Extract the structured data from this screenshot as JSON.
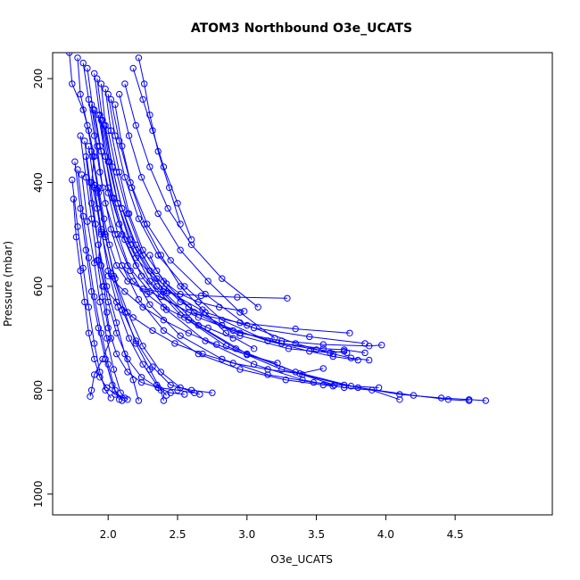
{
  "chart_data": {
    "type": "scatter",
    "title": "ATOM3 Northbound O3e_UCATS",
    "xlabel": "O3e_UCATS",
    "ylabel": "Pressure (mbar)",
    "xlim": [
      1.6,
      5.2
    ],
    "ylim": [
      1040,
      150
    ],
    "y_inverted": true,
    "x_ticks": [
      "2.0",
      "2.5",
      "3.0",
      "3.5",
      "4.0",
      "4.5"
    ],
    "y_ticks": [
      "200",
      "400",
      "600",
      "800",
      "1000"
    ],
    "grid": false,
    "legend": "none",
    "series_color": "#0000ff",
    "marker": "open circle",
    "connected": true,
    "series": [
      {
        "x": [
          1.72,
          1.74,
          1.82,
          1.86,
          1.9,
          1.88,
          1.92,
          1.95,
          1.93,
          1.97,
          1.99,
          2.02,
          1.96,
          1.9,
          1.88,
          1.87
        ],
        "y": [
          150,
          210,
          260,
          300,
          350,
          400,
          450,
          500,
          550,
          600,
          650,
          700,
          740,
          770,
          800,
          812
        ]
      },
      {
        "x": [
          1.78,
          1.8,
          1.85,
          1.89,
          1.93,
          1.97,
          2.01,
          2.06,
          2.14,
          2.25,
          2.42,
          2.67,
          2.93,
          3.29
        ],
        "y": [
          160,
          230,
          290,
          350,
          410,
          470,
          520,
          560,
          590,
          605,
          613,
          618,
          621,
          623
        ]
      },
      {
        "x": [
          1.82,
          1.86,
          1.9,
          1.94,
          1.98,
          2.05,
          2.14,
          2.3,
          2.58,
          2.95,
          3.35,
          3.74
        ],
        "y": [
          170,
          240,
          310,
          380,
          440,
          500,
          560,
          610,
          650,
          670,
          682,
          690
        ]
      },
      {
        "x": [
          1.85,
          1.89,
          1.94,
          2.0,
          2.08,
          2.2,
          2.4,
          2.7,
          3.05,
          3.45,
          3.85
        ],
        "y": [
          180,
          260,
          330,
          410,
          480,
          545,
          605,
          650,
          680,
          697,
          710
        ]
      },
      {
        "x": [
          1.9,
          1.94,
          1.98,
          2.03,
          2.1,
          2.2,
          2.38,
          2.65,
          2.95,
          3.25,
          3.55,
          3.88,
          3.97
        ],
        "y": [
          190,
          270,
          350,
          430,
          500,
          560,
          620,
          660,
          690,
          705,
          712,
          715,
          713
        ]
      },
      {
        "x": [
          1.92,
          1.96,
          2.01,
          2.07,
          2.16,
          2.3,
          2.52,
          2.82,
          3.15,
          3.5,
          3.72
        ],
        "y": [
          200,
          280,
          360,
          440,
          510,
          570,
          630,
          675,
          705,
          722,
          728
        ]
      },
      {
        "x": [
          1.95,
          1.98,
          2.03,
          2.1,
          2.2,
          2.35,
          2.58,
          2.9,
          3.25,
          3.55,
          3.7,
          3.85
        ],
        "y": [
          210,
          290,
          370,
          450,
          520,
          585,
          640,
          685,
          710,
          720,
          722,
          728
        ]
      },
      {
        "x": [
          1.98,
          2.02,
          2.08,
          2.15,
          2.25,
          2.4,
          2.62,
          2.95,
          3.3,
          3.6,
          3.7
        ],
        "y": [
          220,
          300,
          380,
          460,
          530,
          590,
          650,
          695,
          720,
          728,
          725
        ]
      },
      {
        "x": [
          2.0,
          2.05,
          2.12,
          2.22,
          2.36,
          2.55,
          2.82,
          3.15,
          3.45,
          3.62,
          3.8
        ],
        "y": [
          230,
          310,
          390,
          470,
          540,
          600,
          665,
          705,
          725,
          735,
          742
        ]
      },
      {
        "x": [
          2.02,
          2.08,
          2.16,
          2.28,
          2.45,
          2.7,
          3.0,
          3.35,
          3.62,
          3.75,
          3.88
        ],
        "y": [
          240,
          320,
          400,
          480,
          550,
          615,
          675,
          710,
          730,
          738,
          742
        ]
      },
      {
        "x": [
          1.88,
          1.92,
          1.96,
          2.02,
          2.1,
          2.22,
          2.4,
          2.65,
          2.95,
          3.28,
          3.55,
          3.62
        ],
        "y": [
          250,
          330,
          410,
          490,
          560,
          625,
          685,
          730,
          760,
          780,
          790,
          792
        ]
      },
      {
        "x": [
          1.9,
          1.95,
          2.0,
          2.07,
          2.16,
          2.3,
          2.52,
          2.82,
          3.15,
          3.48,
          3.75,
          3.95
        ],
        "y": [
          260,
          340,
          420,
          500,
          570,
          635,
          695,
          740,
          770,
          785,
          792,
          795
        ]
      },
      {
        "x": [
          1.93,
          1.98,
          2.04,
          2.12,
          2.24,
          2.42,
          2.7,
          3.05,
          3.4,
          3.7,
          3.9,
          4.1
        ],
        "y": [
          270,
          350,
          430,
          510,
          580,
          645,
          705,
          750,
          780,
          795,
          800,
          818
        ]
      },
      {
        "x": [
          1.95,
          2.0,
          2.07,
          2.16,
          2.3,
          2.52,
          2.85,
          3.25,
          3.7,
          4.1,
          4.4,
          4.6,
          4.72
        ],
        "y": [
          280,
          360,
          440,
          520,
          590,
          655,
          715,
          760,
          790,
          808,
          815,
          818,
          820
        ]
      },
      {
        "x": [
          1.97,
          2.03,
          2.1,
          2.2,
          2.35,
          2.58,
          2.92,
          3.35,
          3.8,
          4.2,
          4.45,
          4.6
        ],
        "y": [
          290,
          370,
          450,
          530,
          600,
          665,
          720,
          765,
          795,
          810,
          818,
          820
        ]
      },
      {
        "x": [
          2.0,
          2.06,
          2.14,
          2.25,
          2.4,
          2.65,
          3.0,
          3.4,
          3.63
        ],
        "y": [
          300,
          380,
          460,
          540,
          610,
          675,
          730,
          770,
          790
        ]
      },
      {
        "x": [
          1.8,
          1.84,
          1.88,
          1.92,
          1.96,
          2.0,
          2.06,
          2.14,
          2.24,
          2.36,
          2.5,
          2.62
        ],
        "y": [
          310,
          390,
          470,
          550,
          620,
          680,
          730,
          765,
          785,
          795,
          800,
          805
        ]
      },
      {
        "x": [
          1.83,
          1.87,
          1.91,
          1.95,
          2.0,
          2.06,
          2.14,
          2.24,
          2.36,
          2.45,
          2.55
        ],
        "y": [
          320,
          400,
          480,
          560,
          630,
          690,
          740,
          775,
          795,
          805,
          808
        ]
      },
      {
        "x": [
          1.86,
          1.9,
          1.95,
          2.0,
          2.07,
          2.15,
          2.25,
          2.35,
          2.42
        ],
        "y": [
          330,
          410,
          490,
          570,
          640,
          700,
          750,
          790,
          810
        ]
      },
      {
        "x": [
          1.88,
          1.93,
          1.98,
          2.04,
          2.12,
          2.2,
          2.3,
          2.38,
          2.4
        ],
        "y": [
          340,
          420,
          500,
          580,
          650,
          710,
          760,
          800,
          820
        ]
      },
      {
        "x": [
          1.84,
          1.88,
          1.93,
          1.99,
          2.06,
          2.12,
          2.18,
          2.22
        ],
        "y": [
          350,
          440,
          520,
          600,
          670,
          730,
          780,
          820
        ]
      },
      {
        "x": [
          1.76,
          1.8,
          1.84,
          1.88,
          1.93,
          1.98,
          2.03,
          2.08
        ],
        "y": [
          360,
          450,
          530,
          610,
          680,
          740,
          790,
          818
        ]
      },
      {
        "x": [
          1.78,
          1.82,
          1.86,
          1.9,
          1.95,
          2.0,
          2.05,
          2.1
        ],
        "y": [
          375,
          465,
          545,
          620,
          690,
          750,
          800,
          820
        ]
      },
      {
        "x": [
          1.81,
          1.85,
          1.9,
          1.94,
          1.99,
          2.04,
          2.09,
          2.14
        ],
        "y": [
          385,
          475,
          555,
          630,
          700,
          760,
          805,
          818
        ]
      },
      {
        "x": [
          1.74,
          1.78,
          1.82,
          1.86,
          1.9,
          1.94,
          1.98,
          2.02
        ],
        "y": [
          395,
          485,
          565,
          640,
          710,
          765,
          800,
          815
        ]
      },
      {
        "x": [
          1.9,
          1.95,
          2.02,
          2.1,
          2.2,
          2.32,
          2.45,
          2.6,
          2.75
        ],
        "y": [
          405,
          495,
          575,
          645,
          705,
          755,
          790,
          800,
          805
        ]
      },
      {
        "x": [
          1.92,
          1.98,
          2.05,
          2.14,
          2.25,
          2.38,
          2.52,
          2.66
        ],
        "y": [
          415,
          505,
          585,
          650,
          715,
          765,
          795,
          808
        ]
      },
      {
        "x": [
          2.05,
          2.1,
          2.17,
          2.26,
          2.38,
          2.52,
          2.68,
          2.85,
          3.05
        ],
        "y": [
          250,
          330,
          410,
          480,
          540,
          600,
          645,
          690,
          720
        ]
      },
      {
        "x": [
          2.08,
          2.15,
          2.24,
          2.36,
          2.52,
          2.72,
          2.95,
          3.2
        ],
        "y": [
          230,
          310,
          390,
          460,
          530,
          590,
          650,
          700
        ]
      },
      {
        "x": [
          2.12,
          2.2,
          2.3,
          2.43,
          2.6,
          2.82,
          3.08
        ],
        "y": [
          210,
          290,
          370,
          450,
          520,
          585,
          640
        ]
      },
      {
        "x": [
          2.18,
          2.25,
          2.32,
          2.4,
          2.5,
          2.6
        ],
        "y": [
          180,
          240,
          300,
          370,
          440,
          510
        ]
      },
      {
        "x": [
          2.22,
          2.26,
          2.3,
          2.36,
          2.44,
          2.52
        ],
        "y": [
          160,
          210,
          270,
          340,
          410,
          480
        ]
      },
      {
        "x": [
          1.75,
          1.77,
          1.8,
          1.83,
          1.86,
          1.9,
          1.94,
          1.99,
          2.05,
          2.12
        ],
        "y": [
          432,
          505,
          570,
          630,
          690,
          740,
          775,
          795,
          808,
          815
        ]
      },
      {
        "x": [
          2.3,
          2.35,
          2.42,
          2.52,
          2.65,
          2.8,
          2.98
        ],
        "y": [
          540,
          570,
          595,
          615,
          630,
          640,
          648
        ]
      },
      {
        "x": [
          2.1,
          2.18,
          2.28,
          2.4,
          2.55,
          2.72,
          2.9
        ],
        "y": [
          560,
          590,
          615,
          640,
          660,
          680,
          700
        ]
      },
      {
        "x": [
          2.0,
          2.12,
          2.25,
          2.4,
          2.58,
          2.78,
          3.0,
          3.22
        ],
        "y": [
          580,
          610,
          640,
          665,
          690,
          712,
          732,
          748
        ]
      },
      {
        "x": [
          1.96,
          2.06,
          2.18,
          2.32,
          2.48,
          2.68,
          2.9,
          3.15,
          3.38,
          3.55
        ],
        "y": [
          600,
          630,
          660,
          685,
          710,
          730,
          748,
          760,
          768,
          758
        ]
      }
    ]
  }
}
